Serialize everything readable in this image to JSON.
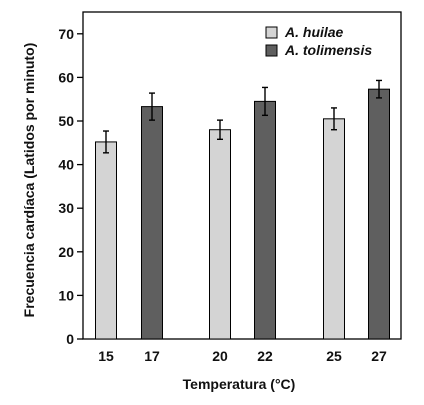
{
  "chart_data": {
    "type": "bar",
    "xlabel": "Temperatura (°C)",
    "ylabel": "Frecuencia cardíaca (Latidos por minuto)",
    "ylim": [
      0,
      75
    ],
    "yticks": [
      0,
      10,
      20,
      30,
      40,
      50,
      60,
      70
    ],
    "grid": false,
    "legend_position": "top-right",
    "series": [
      {
        "name": "A. huilae",
        "color": "#d4d4d4",
        "points": [
          {
            "x": "15",
            "y": 45.2,
            "err": 2.5
          },
          {
            "x": "20",
            "y": 48.0,
            "err": 2.2
          },
          {
            "x": "25",
            "y": 50.5,
            "err": 2.5
          }
        ]
      },
      {
        "name": "A. tolimensis",
        "color": "#5f5f5f",
        "points": [
          {
            "x": "17",
            "y": 53.3,
            "err": 3.1
          },
          {
            "x": "22",
            "y": 54.5,
            "err": 3.2
          },
          {
            "x": "27",
            "y": 57.3,
            "err": 2.0
          }
        ]
      }
    ]
  }
}
